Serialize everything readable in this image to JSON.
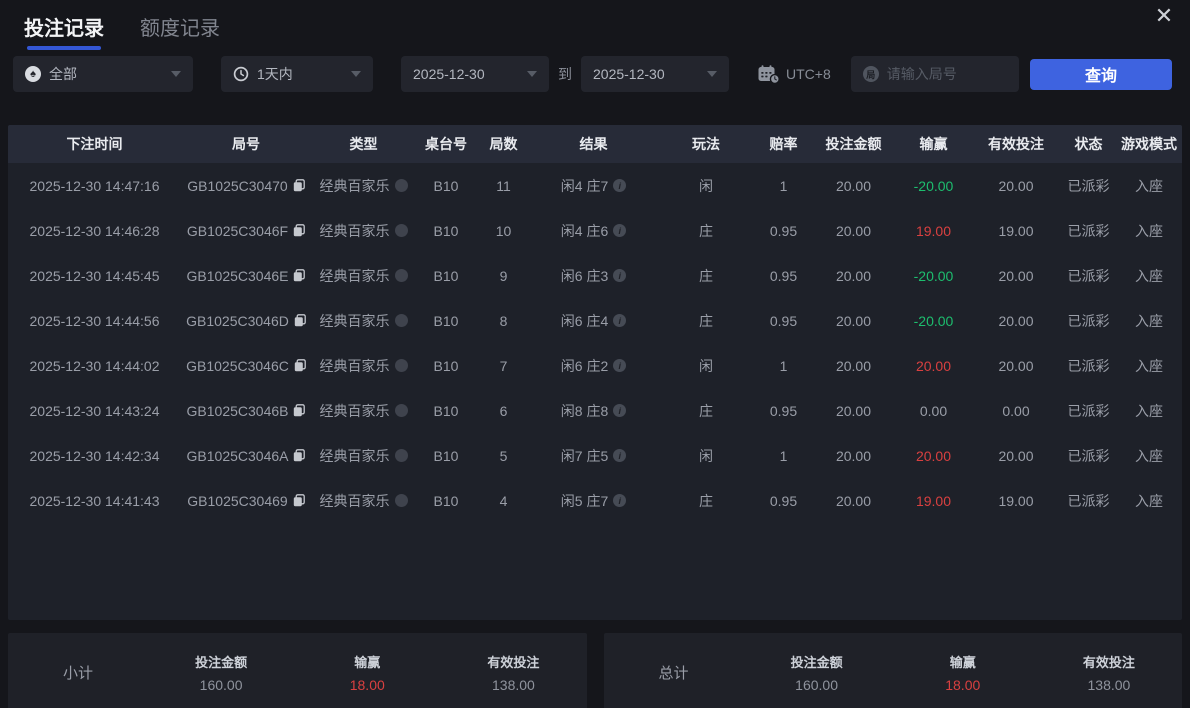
{
  "window": {
    "close_icon": "✕"
  },
  "tabs": [
    {
      "label": "投注记录",
      "active": true
    },
    {
      "label": "额度记录",
      "active": false
    }
  ],
  "filters": {
    "game_type": {
      "value": "全部",
      "icon": "spade-icon"
    },
    "time_range": {
      "value": "1天内",
      "icon": "clock-icon"
    },
    "date_from": "2025-12-30",
    "to_label": "到",
    "date_to": "2025-12-30",
    "timezone_label": "UTC+8",
    "round_input_placeholder": "请输入局号",
    "search_button_label": "查询"
  },
  "table": {
    "columns": [
      "下注时间",
      "局号",
      "类型",
      "桌台号",
      "局数",
      "结果",
      "玩法",
      "赔率",
      "投注金额",
      "输赢",
      "有效投注",
      "状态",
      "游戏模式"
    ],
    "rows": [
      {
        "time": "2025-12-30 14:47:16",
        "round_id": "GB1025C30470",
        "type": "经典百家乐",
        "table_no": "B10",
        "round_no": "11",
        "result": "闲4 庄7",
        "play": "闲",
        "odds": "1",
        "bet": "20.00",
        "win_loss": "-20.00",
        "win_loss_color": "green",
        "valid_bet": "20.00",
        "status": "已派彩",
        "mode": "入座"
      },
      {
        "time": "2025-12-30 14:46:28",
        "round_id": "GB1025C3046F",
        "type": "经典百家乐",
        "table_no": "B10",
        "round_no": "10",
        "result": "闲4 庄6",
        "play": "庄",
        "odds": "0.95",
        "bet": "20.00",
        "win_loss": "19.00",
        "win_loss_color": "red",
        "valid_bet": "19.00",
        "status": "已派彩",
        "mode": "入座"
      },
      {
        "time": "2025-12-30 14:45:45",
        "round_id": "GB1025C3046E",
        "type": "经典百家乐",
        "table_no": "B10",
        "round_no": "9",
        "result": "闲6 庄3",
        "play": "庄",
        "odds": "0.95",
        "bet": "20.00",
        "win_loss": "-20.00",
        "win_loss_color": "green",
        "valid_bet": "20.00",
        "status": "已派彩",
        "mode": "入座"
      },
      {
        "time": "2025-12-30 14:44:56",
        "round_id": "GB1025C3046D",
        "type": "经典百家乐",
        "table_no": "B10",
        "round_no": "8",
        "result": "闲6 庄4",
        "play": "庄",
        "odds": "0.95",
        "bet": "20.00",
        "win_loss": "-20.00",
        "win_loss_color": "green",
        "valid_bet": "20.00",
        "status": "已派彩",
        "mode": "入座"
      },
      {
        "time": "2025-12-30 14:44:02",
        "round_id": "GB1025C3046C",
        "type": "经典百家乐",
        "table_no": "B10",
        "round_no": "7",
        "result": "闲6 庄2",
        "play": "闲",
        "odds": "1",
        "bet": "20.00",
        "win_loss": "20.00",
        "win_loss_color": "red",
        "valid_bet": "20.00",
        "status": "已派彩",
        "mode": "入座"
      },
      {
        "time": "2025-12-30 14:43:24",
        "round_id": "GB1025C3046B",
        "type": "经典百家乐",
        "table_no": "B10",
        "round_no": "6",
        "result": "闲8 庄8",
        "play": "庄",
        "odds": "0.95",
        "bet": "20.00",
        "win_loss": "0.00",
        "win_loss_color": "default",
        "valid_bet": "0.00",
        "status": "已派彩",
        "mode": "入座"
      },
      {
        "time": "2025-12-30 14:42:34",
        "round_id": "GB1025C3046A",
        "type": "经典百家乐",
        "table_no": "B10",
        "round_no": "5",
        "result": "闲7 庄5",
        "play": "闲",
        "odds": "1",
        "bet": "20.00",
        "win_loss": "20.00",
        "win_loss_color": "red",
        "valid_bet": "20.00",
        "status": "已派彩",
        "mode": "入座"
      },
      {
        "time": "2025-12-30 14:41:43",
        "round_id": "GB1025C30469",
        "type": "经典百家乐",
        "table_no": "B10",
        "round_no": "4",
        "result": "闲5 庄7",
        "play": "庄",
        "odds": "0.95",
        "bet": "20.00",
        "win_loss": "19.00",
        "win_loss_color": "red",
        "valid_bet": "19.00",
        "status": "已派彩",
        "mode": "入座"
      }
    ]
  },
  "summary": {
    "subtotal": {
      "label": "小计",
      "items": [
        {
          "label": "投注金额",
          "value": "160.00",
          "color": "default"
        },
        {
          "label": "输赢",
          "value": "18.00",
          "color": "red"
        },
        {
          "label": "有效投注",
          "value": "138.00",
          "color": "default"
        }
      ]
    },
    "total": {
      "label": "总计",
      "items": [
        {
          "label": "投注金额",
          "value": "160.00",
          "color": "default"
        },
        {
          "label": "输赢",
          "value": "18.00",
          "color": "red"
        },
        {
          "label": "有效投注",
          "value": "138.00",
          "color": "default"
        }
      ]
    }
  },
  "colors": {
    "accent": "#3e63e0",
    "win_red": "#d94040",
    "loss_green": "#1dbd6e"
  }
}
